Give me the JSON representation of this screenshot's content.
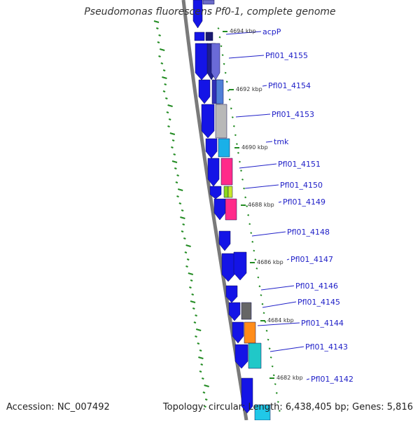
{
  "title": "Pseudomonas fluorescens Pf0-1, complete genome",
  "footer": {
    "accession": "Accession: NC_007492",
    "stats": "Topology: circular; Length: 6,438,405 bp; Genes: 5,816"
  },
  "colors": {
    "blue_gene": "#1414e6",
    "axis": "#7a7a7a",
    "green_tick": "#228b22",
    "label": "#2020c8",
    "kbp": "#333333"
  },
  "gene_labels": [
    {
      "name": "acpP"
    },
    {
      "name": "Pfl01_4155"
    },
    {
      "name": "Pfl01_4154"
    },
    {
      "name": "Pfl01_4153"
    },
    {
      "name": "tmk"
    },
    {
      "name": "Pfl01_4151"
    },
    {
      "name": "Pfl01_4150"
    },
    {
      "name": "Pfl01_4149"
    },
    {
      "name": "Pfl01_4148"
    },
    {
      "name": "Pfl01_4147"
    },
    {
      "name": "Pfl01_4146"
    },
    {
      "name": "Pfl01_4145"
    },
    {
      "name": "Pfl01_4144"
    },
    {
      "name": "Pfl01_4143"
    },
    {
      "name": "Pfl01_4142"
    }
  ],
  "kbp_labels": [
    {
      "text": "4694 kbp"
    },
    {
      "text": "4692 kbp"
    },
    {
      "text": "4690 kbp"
    },
    {
      "text": "4688 kbp"
    },
    {
      "text": "4686 kbp"
    },
    {
      "text": "4684 kbp"
    },
    {
      "text": "4682 kbp"
    }
  ]
}
